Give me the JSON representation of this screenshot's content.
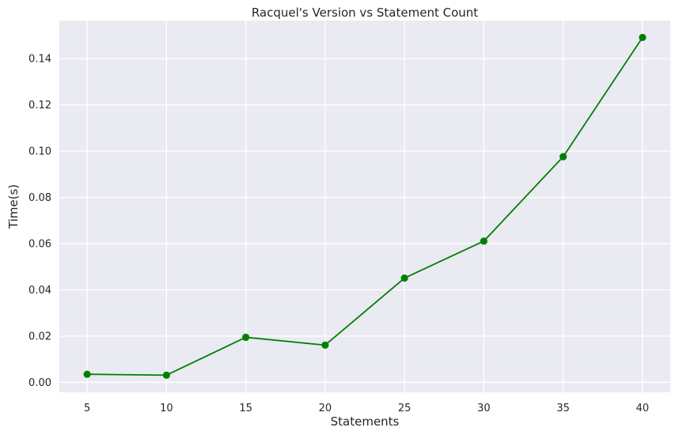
{
  "chart_data": {
    "type": "line",
    "title": "Racquel's Version vs Statement Count",
    "xlabel": "Statements",
    "ylabel": "Time(s)",
    "x": [
      5,
      10,
      15,
      20,
      25,
      30,
      35,
      40
    ],
    "series": [
      {
        "values": [
          0.0035,
          0.0031,
          0.0195,
          0.0161,
          0.0451,
          0.0611,
          0.0976,
          0.1492
        ]
      }
    ],
    "xticks": [
      5,
      10,
      15,
      20,
      25,
      30,
      35,
      40
    ],
    "xtick_labels": [
      "5",
      "10",
      "15",
      "20",
      "25",
      "30",
      "35",
      "40"
    ],
    "yticks": [
      0.0,
      0.02,
      0.04,
      0.06,
      0.08,
      0.1,
      0.12,
      0.14
    ],
    "ytick_labels": [
      "0.00",
      "0.02",
      "0.04",
      "0.06",
      "0.08",
      "0.10",
      "0.12",
      "0.14"
    ],
    "xlim": [
      3.25,
      41.75
    ],
    "ylim": [
      -0.0043,
      0.1565
    ],
    "grid": true,
    "legend": "none",
    "colors": {
      "line": "#008000",
      "background": "#eaeaf2",
      "grid": "#ffffff"
    }
  }
}
